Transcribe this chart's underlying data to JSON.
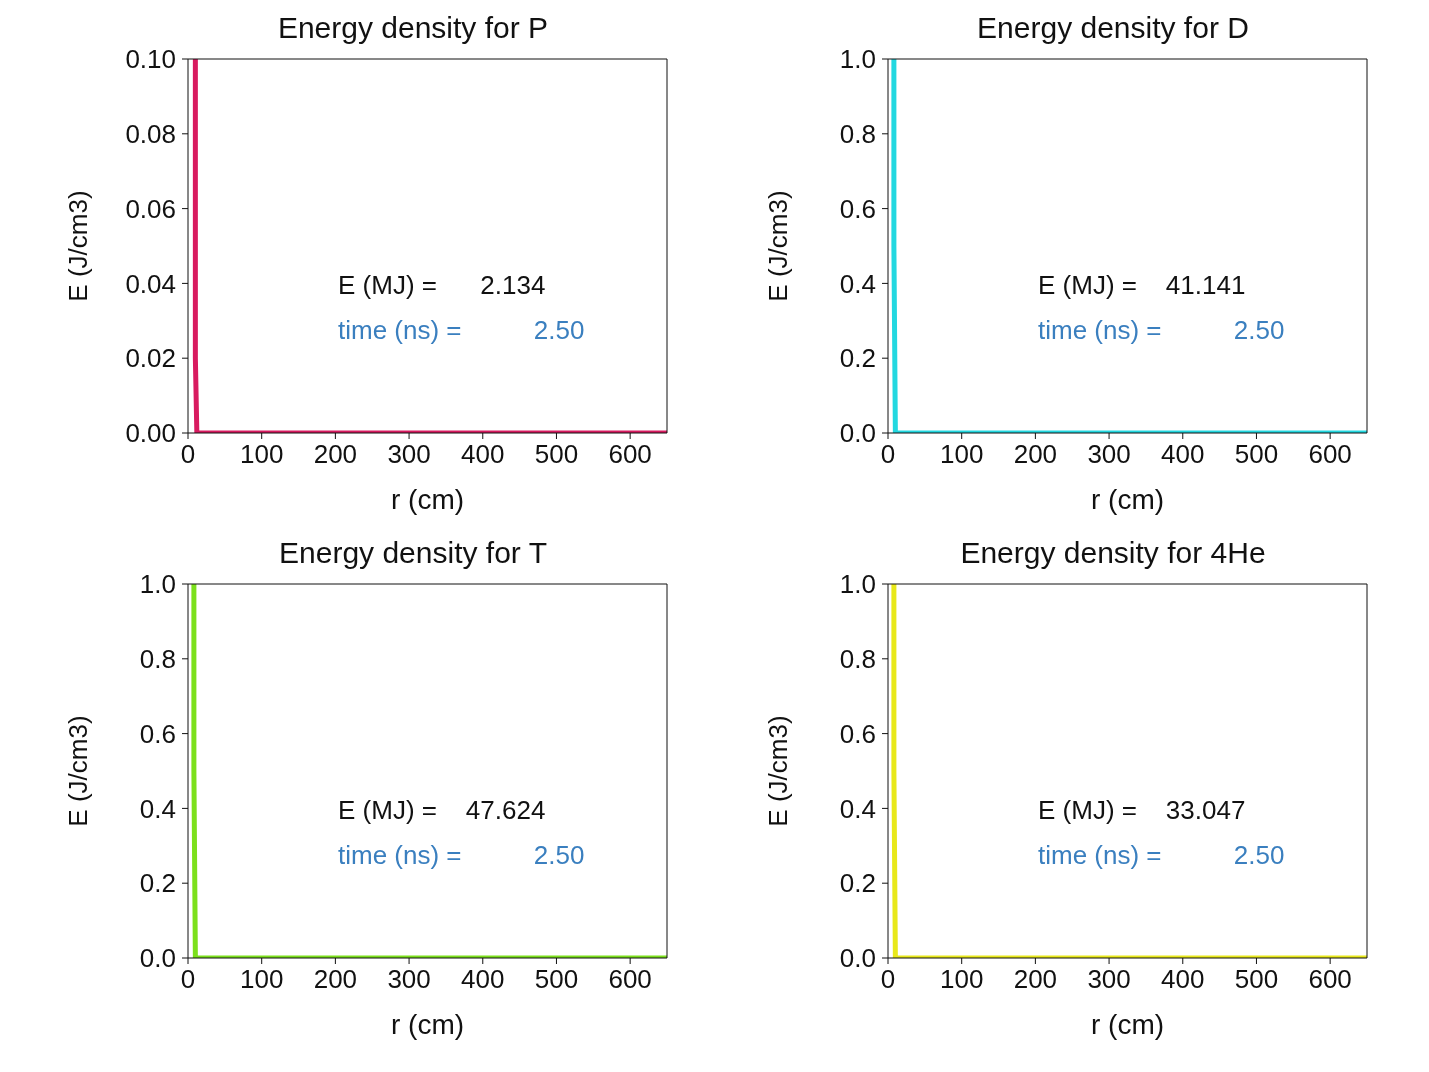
{
  "chart_data": [
    {
      "type": "line",
      "title": "Energy density for P",
      "xlabel": "r (cm)",
      "ylabel": "E (J/cm3)",
      "annotations": [
        "E (MJ) =      2.134",
        "time (ns) =          2.50"
      ],
      "series": [
        {
          "color": "#d81b60",
          "x": [
            10,
            10,
            12,
            650
          ],
          "values": [
            0.1,
            0.02,
            0,
            0
          ]
        }
      ],
      "xlim": [
        0,
        650
      ],
      "xticks": [
        0,
        100,
        200,
        300,
        400,
        500,
        600
      ],
      "ylim": [
        0,
        0.1
      ],
      "yticks": [
        {
          "value": 0,
          "label": "0.00"
        },
        {
          "value": 0.02,
          "label": "0.02"
        },
        {
          "value": 0.04,
          "label": "0.04"
        },
        {
          "value": 0.06,
          "label": "0.06"
        },
        {
          "value": 0.08,
          "label": "0.08"
        },
        {
          "value": 0.1,
          "label": "0.10"
        }
      ]
    },
    {
      "type": "line",
      "title": "Energy density for D",
      "xlabel": "r (cm)",
      "ylabel": "E (J/cm3)",
      "annotations": [
        "E (MJ) =    41.141",
        "time (ns) =          2.50"
      ],
      "series": [
        {
          "color": "#22d8e0",
          "x": [
            8,
            8,
            10,
            650
          ],
          "values": [
            1.0,
            0.5,
            0,
            0
          ]
        }
      ],
      "xlim": [
        0,
        650
      ],
      "xticks": [
        0,
        100,
        200,
        300,
        400,
        500,
        600
      ],
      "ylim": [
        0,
        1
      ],
      "yticks": [
        {
          "value": 0,
          "label": "0.0"
        },
        {
          "value": 0.2,
          "label": "0.2"
        },
        {
          "value": 0.4,
          "label": "0.4"
        },
        {
          "value": 0.6,
          "label": "0.6"
        },
        {
          "value": 0.8,
          "label": "0.8"
        },
        {
          "value": 1,
          "label": "1.0"
        }
      ]
    },
    {
      "type": "line",
      "title": "Energy density for T",
      "xlabel": "r (cm)",
      "ylabel": "E (J/cm3)",
      "annotations": [
        "E (MJ) =    47.624",
        "time (ns) =          2.50"
      ],
      "series": [
        {
          "color": "#7ce01c",
          "x": [
            8,
            8,
            10,
            650
          ],
          "values": [
            1.0,
            0.5,
            0,
            0
          ]
        }
      ],
      "xlim": [
        0,
        650
      ],
      "xticks": [
        0,
        100,
        200,
        300,
        400,
        500,
        600
      ],
      "ylim": [
        0,
        1
      ],
      "yticks": [
        {
          "value": 0,
          "label": "0.0"
        },
        {
          "value": 0.2,
          "label": "0.2"
        },
        {
          "value": 0.4,
          "label": "0.4"
        },
        {
          "value": 0.6,
          "label": "0.6"
        },
        {
          "value": 0.8,
          "label": "0.8"
        },
        {
          "value": 1,
          "label": "1.0"
        }
      ]
    },
    {
      "type": "line",
      "title": "Energy density for 4He",
      "xlabel": "r (cm)",
      "ylabel": "E (J/cm3)",
      "annotations": [
        "E (MJ) =    33.047",
        "time (ns) =          2.50"
      ],
      "series": [
        {
          "color": "#e8e81a",
          "x": [
            8,
            8,
            10,
            650
          ],
          "values": [
            1.0,
            0.5,
            0,
            0
          ]
        }
      ],
      "xlim": [
        0,
        650
      ],
      "xticks": [
        0,
        100,
        200,
        300,
        400,
        500,
        600
      ],
      "ylim": [
        0,
        1
      ],
      "yticks": [
        {
          "value": 0,
          "label": "0.0"
        },
        {
          "value": 0.2,
          "label": "0.2"
        },
        {
          "value": 0.4,
          "label": "0.4"
        },
        {
          "value": 0.6,
          "label": "0.6"
        },
        {
          "value": 0.8,
          "label": "0.8"
        },
        {
          "value": 1,
          "label": "1.0"
        }
      ]
    }
  ]
}
